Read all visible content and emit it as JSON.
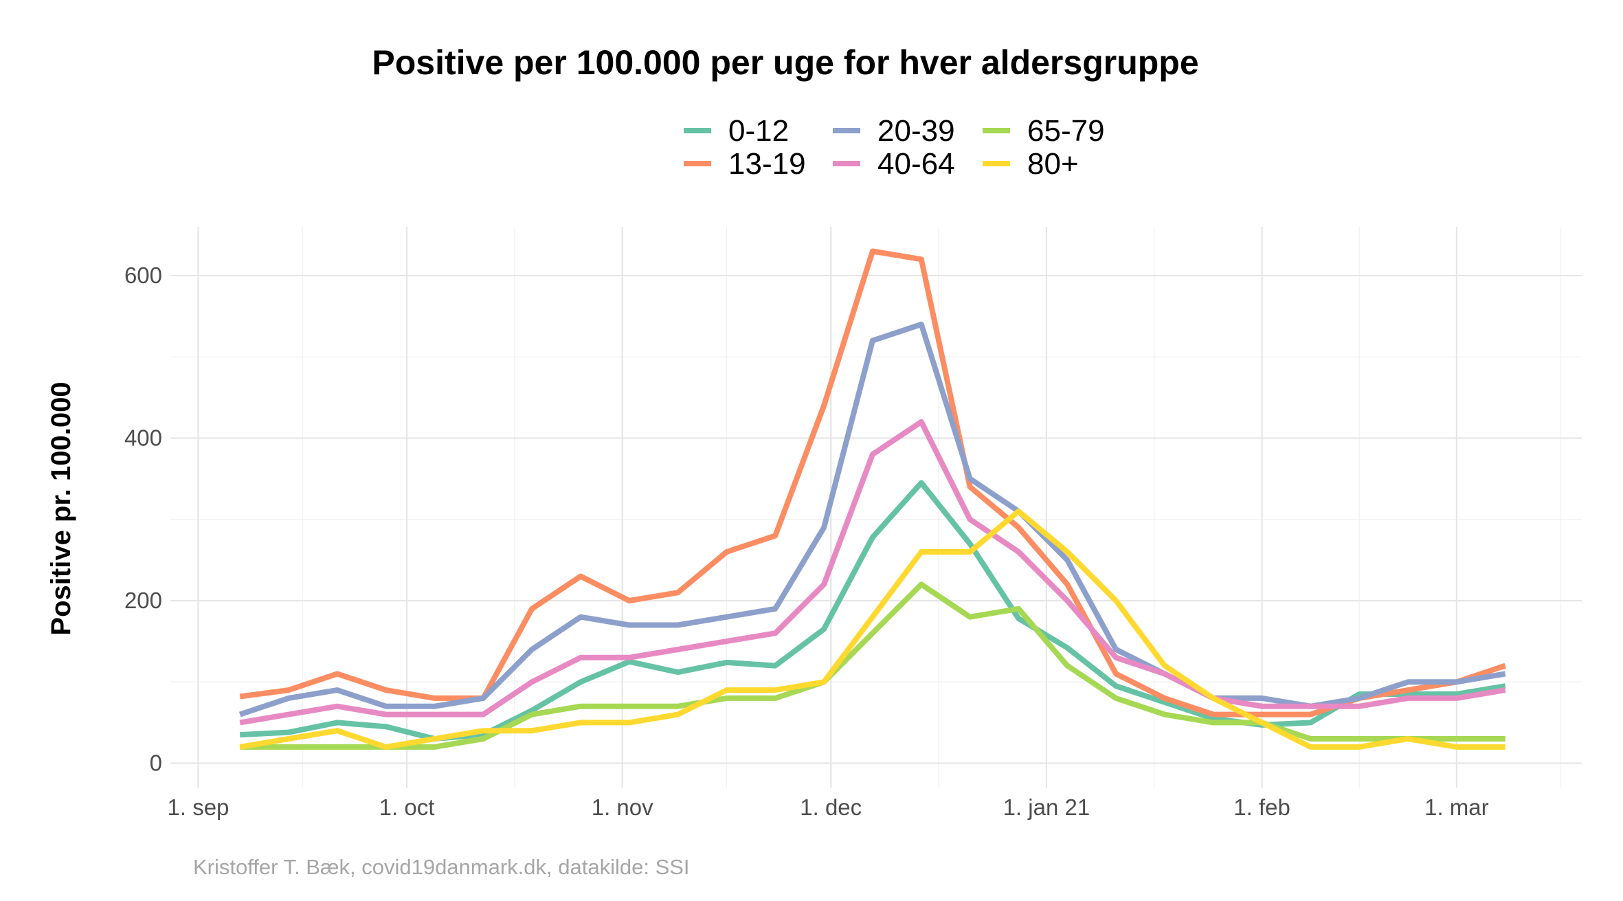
{
  "chart_data": {
    "type": "line",
    "title": "Positive per 100.000 per uge for hver aldersgruppe",
    "ylabel": "Positive pr. 100.000",
    "xlabel": "",
    "caption": "Kristoffer T. Bæk, covid19danmark.dk, datakilde: SSI",
    "ylim": [
      -30,
      660
    ],
    "xlim": [
      "2020-08-28",
      "2021-03-19"
    ],
    "y_ticks": [
      0,
      200,
      400,
      600
    ],
    "x_ticks": [
      {
        "date": "2020-09-01",
        "label": "1. sep"
      },
      {
        "date": "2020-10-01",
        "label": "1. oct"
      },
      {
        "date": "2020-11-01",
        "label": "1. nov"
      },
      {
        "date": "2020-12-01",
        "label": "1. dec"
      },
      {
        "date": "2021-01-01",
        "label": "1. jan 21"
      },
      {
        "date": "2021-02-01",
        "label": "1. feb"
      },
      {
        "date": "2021-03-01",
        "label": "1. mar"
      }
    ],
    "grid": true,
    "legend_position": "top",
    "x": [
      "2020-09-07",
      "2020-09-14",
      "2020-09-21",
      "2020-09-28",
      "2020-10-05",
      "2020-10-12",
      "2020-10-19",
      "2020-10-26",
      "2020-11-02",
      "2020-11-09",
      "2020-11-16",
      "2020-11-23",
      "2020-11-30",
      "2020-12-07",
      "2020-12-14",
      "2020-12-21",
      "2020-12-28",
      "2021-01-04",
      "2021-01-11",
      "2021-01-18",
      "2021-01-25",
      "2021-02-01",
      "2021-02-08",
      "2021-02-15",
      "2021-02-22",
      "2021-03-01",
      "2021-03-08"
    ],
    "series": [
      {
        "name": "0-12",
        "color": "#66c2a5",
        "values": [
          35,
          38,
          50,
          45,
          30,
          35,
          65,
          100,
          125,
          112,
          124,
          120,
          165,
          278,
          345,
          270,
          178,
          142,
          95,
          75,
          55,
          47,
          50,
          85,
          85,
          85,
          95
        ]
      },
      {
        "name": "13-19",
        "color": "#fc8d62",
        "values": [
          82,
          90,
          110,
          90,
          80,
          80,
          190,
          230,
          200,
          210,
          260,
          280,
          440,
          630,
          620,
          340,
          290,
          220,
          110,
          80,
          60,
          60,
          60,
          80,
          90,
          100,
          120
        ]
      },
      {
        "name": "20-39",
        "color": "#8da0cb",
        "values": [
          60,
          80,
          90,
          70,
          70,
          80,
          140,
          180,
          170,
          170,
          180,
          190,
          290,
          520,
          540,
          350,
          310,
          250,
          140,
          110,
          80,
          80,
          70,
          80,
          100,
          100,
          110
        ]
      },
      {
        "name": "40-64",
        "color": "#e78ac3",
        "values": [
          50,
          60,
          70,
          60,
          60,
          60,
          100,
          130,
          130,
          140,
          150,
          160,
          220,
          380,
          420,
          300,
          260,
          200,
          130,
          110,
          80,
          70,
          70,
          70,
          80,
          80,
          90
        ]
      },
      {
        "name": "65-79",
        "color": "#a6d854",
        "values": [
          20,
          20,
          20,
          20,
          20,
          30,
          60,
          70,
          70,
          70,
          80,
          80,
          100,
          160,
          220,
          180,
          190,
          120,
          80,
          60,
          50,
          50,
          30,
          30,
          30,
          30,
          30
        ]
      },
      {
        "name": "80+",
        "color": "#ffd92f",
        "values": [
          20,
          30,
          40,
          20,
          30,
          40,
          40,
          50,
          50,
          60,
          90,
          90,
          100,
          180,
          260,
          260,
          310,
          260,
          200,
          120,
          80,
          50,
          20,
          20,
          30,
          20,
          20
        ]
      }
    ]
  }
}
